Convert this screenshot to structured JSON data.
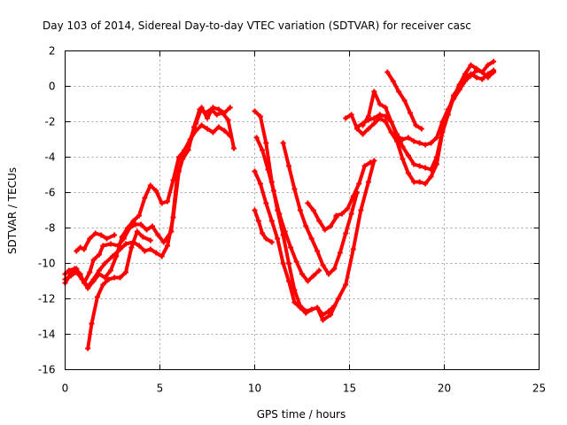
{
  "chart_data": {
    "type": "scatter",
    "title": "Day 103 of 2014, Sidereal Day-to-day VTEC variation (SDTVAR) for receiver casc",
    "xlabel": "GPS time / hours",
    "ylabel": "SDTVAR / TECUs",
    "xlim": [
      0,
      25
    ],
    "ylim": [
      -16,
      2
    ],
    "xticks": [
      "0",
      "5",
      "10",
      "15",
      "20",
      "25"
    ],
    "yticks": [
      "-16",
      "-14",
      "-12",
      "-10",
      "-8",
      "-6",
      "-4",
      "-2",
      "0",
      "2"
    ],
    "grid": true,
    "legend": "none",
    "marker": "+",
    "color": "#ff0000",
    "series": [
      {
        "x": [
          0.0,
          0.2,
          0.5,
          0.8,
          1.0,
          1.3,
          1.5,
          1.8,
          2.0,
          2.4,
          2.8,
          3.1,
          3.4,
          3.7,
          4.0,
          4.3,
          4.6,
          4.9,
          5.2,
          5.6,
          5.9,
          6.2,
          6.5,
          6.8,
          7.1,
          7.4,
          7.7,
          8.0,
          8.3,
          8.6,
          8.9
        ],
        "y": [
          -10.6,
          -10.4,
          -10.3,
          -10.6,
          -11.1,
          -10.5,
          -9.8,
          -9.5,
          -9.0,
          -8.9,
          -9.0,
          -8.6,
          -8.0,
          -7.8,
          -7.8,
          -8.1,
          -7.9,
          -8.4,
          -8.8,
          -8.2,
          -5.2,
          -4.1,
          -3.6,
          -2.3,
          -1.3,
          -1.5,
          -1.3,
          -1.6,
          -1.5,
          -1.9,
          -3.5
        ]
      },
      {
        "x": [
          0.0,
          0.3,
          0.6,
          0.9,
          1.2,
          1.5,
          1.8,
          2.1,
          2.5,
          2.9,
          3.2,
          3.6,
          3.9,
          4.2,
          4.5,
          4.8,
          5.1,
          5.4,
          5.7,
          6.0,
          6.3,
          6.6,
          6.9,
          7.2,
          7.5,
          7.8,
          8.1,
          8.4,
          8.7
        ],
        "y": [
          -10.9,
          -10.7,
          -10.5,
          -10.9,
          -11.3,
          -10.9,
          -10.4,
          -10.0,
          -9.6,
          -9.2,
          -8.9,
          -8.8,
          -9.0,
          -9.3,
          -9.2,
          -9.4,
          -9.6,
          -9.0,
          -7.4,
          -4.8,
          -3.6,
          -3.0,
          -2.5,
          -2.2,
          -2.4,
          -2.6,
          -2.3,
          -2.5,
          -2.8
        ]
      },
      {
        "x": [
          0.0,
          0.3,
          0.6,
          0.9,
          1.2,
          1.5,
          1.8,
          2.1,
          2.4,
          2.7,
          3.0,
          3.3,
          3.6,
          3.9,
          4.2,
          4.5,
          4.8,
          5.1,
          5.4,
          5.7,
          6.0,
          6.3,
          6.6,
          6.9,
          7.2,
          7.5,
          7.8,
          8.1,
          8.4,
          8.7
        ],
        "y": [
          -11.1,
          -10.6,
          -10.3,
          -10.9,
          -11.4,
          -11.0,
          -10.6,
          -10.8,
          -10.4,
          -9.6,
          -8.5,
          -8.0,
          -7.6,
          -7.3,
          -6.3,
          -5.6,
          -5.9,
          -6.6,
          -6.5,
          -5.3,
          -4.0,
          -3.6,
          -3.0,
          -2.1,
          -1.2,
          -1.8,
          -1.2,
          -1.3,
          -1.5,
          -1.2
        ]
      },
      {
        "x": [
          0.6,
          0.8,
          1.0,
          1.3,
          1.6,
          1.9,
          2.2,
          2.6
        ],
        "y": [
          -9.3,
          -9.1,
          -9.2,
          -8.6,
          -8.3,
          -8.4,
          -8.6,
          -8.4
        ]
      },
      {
        "x": [
          1.2,
          1.4,
          1.7,
          2.0,
          2.3,
          2.6,
          2.9,
          3.2,
          3.5,
          3.8,
          4.1,
          4.5
        ],
        "y": [
          -14.8,
          -13.4,
          -11.9,
          -11.2,
          -10.9,
          -10.8,
          -10.8,
          -10.5,
          -9.1,
          -8.2,
          -8.5,
          -8.7
        ]
      },
      {
        "x": [
          10.0,
          10.3,
          10.6,
          10.9,
          11.2,
          11.5,
          11.8,
          12.1,
          12.4,
          12.7,
          13.0,
          13.3,
          13.6,
          13.9,
          14.2
        ],
        "y": [
          -1.4,
          -1.7,
          -3.2,
          -5.4,
          -7.0,
          -8.4,
          -10.0,
          -11.5,
          -12.4,
          -12.7,
          -12.6,
          -12.5,
          -12.9,
          -12.7,
          -12.4
        ]
      },
      {
        "x": [
          10.0,
          10.3,
          10.6,
          10.9,
          11.2,
          11.5,
          11.8,
          12.1,
          12.4,
          12.7,
          13.0,
          13.3,
          13.6,
          14.0,
          14.4,
          14.8,
          15.2,
          15.6,
          16.0,
          16.3
        ],
        "y": [
          -4.8,
          -5.5,
          -6.6,
          -7.6,
          -8.6,
          -10.0,
          -11.0,
          -12.2,
          -12.5,
          -12.8,
          -12.6,
          -12.5,
          -13.2,
          -12.9,
          -12.0,
          -11.2,
          -9.2,
          -7.0,
          -5.4,
          -4.2
        ]
      },
      {
        "x": [
          10.1,
          10.4,
          10.7,
          11.0,
          11.3,
          11.6,
          11.9,
          12.2,
          12.5,
          12.8,
          13.1,
          13.4
        ],
        "y": [
          -2.9,
          -3.6,
          -4.7,
          -5.9,
          -7.2,
          -8.2,
          -9.1,
          -9.9,
          -10.6,
          -11.0,
          -10.7,
          -10.4
        ]
      },
      {
        "x": [
          10.0,
          10.2,
          10.4,
          10.6,
          10.9
        ],
        "y": [
          -7.0,
          -7.6,
          -8.3,
          -8.6,
          -8.8
        ]
      },
      {
        "x": [
          11.5,
          11.8,
          12.1,
          12.4,
          12.7,
          13.0,
          13.3,
          13.6,
          13.9,
          14.2,
          14.5,
          14.8,
          15.1,
          15.4
        ],
        "y": [
          -3.2,
          -4.5,
          -5.8,
          -7.0,
          -7.9,
          -8.6,
          -9.3,
          -10.1,
          -10.6,
          -10.3,
          -9.4,
          -8.3,
          -7.2,
          -6.0
        ]
      },
      {
        "x": [
          12.8,
          13.1,
          13.4,
          13.7,
          14.0,
          14.3
        ],
        "y": [
          -6.6,
          -7.0,
          -7.6,
          -8.1,
          -7.9,
          -7.4
        ]
      },
      {
        "x": [
          14.3,
          14.6,
          14.9,
          15.2,
          15.5,
          15.8,
          16.1
        ],
        "y": [
          -7.3,
          -7.2,
          -6.9,
          -6.2,
          -5.5,
          -4.5,
          -4.3
        ]
      },
      {
        "x": [
          14.8,
          15.1,
          15.4,
          15.7,
          16.0,
          16.3,
          16.6,
          16.9,
          17.2,
          17.5,
          17.8,
          18.1,
          18.4,
          18.7,
          19.0,
          19.3,
          19.6,
          19.9,
          20.2,
          20.5,
          20.8,
          21.1,
          21.4,
          21.7,
          22.0,
          22.3,
          22.6
        ],
        "y": [
          -1.8,
          -1.6,
          -2.4,
          -2.7,
          -2.4,
          -2.1,
          -1.8,
          -2.0,
          -2.6,
          -3.1,
          -4.1,
          -4.9,
          -5.4,
          -5.4,
          -5.5,
          -5.1,
          -4.4,
          -2.6,
          -1.6,
          -0.6,
          0.1,
          0.7,
          1.2,
          1.0,
          0.8,
          1.2,
          1.4
        ]
      },
      {
        "x": [
          15.4,
          15.7,
          16.0,
          16.3,
          16.6,
          16.9,
          17.2,
          17.5,
          17.8,
          18.1,
          18.4,
          18.7,
          19.0,
          19.3,
          19.6,
          19.9,
          20.2,
          20.5,
          20.8,
          21.1,
          21.4,
          21.7,
          22.0,
          22.3,
          22.6
        ],
        "y": [
          -2.3,
          -2.1,
          -1.9,
          -1.8,
          -1.6,
          -1.7,
          -2.0,
          -2.7,
          -3.4,
          -3.9,
          -4.4,
          -4.5,
          -4.6,
          -4.7,
          -4.0,
          -2.5,
          -1.4,
          -0.5,
          0.0,
          0.5,
          0.7,
          0.5,
          0.4,
          0.7,
          0.9
        ]
      },
      {
        "x": [
          15.7,
          16.0,
          16.3,
          16.6,
          16.9,
          17.2,
          17.5,
          17.8,
          18.1,
          18.4,
          18.7,
          19.0,
          19.3,
          19.6,
          19.9,
          20.2,
          20.5,
          20.8,
          21.1,
          21.4,
          21.7,
          22.0,
          22.3,
          22.6
        ],
        "y": [
          -2.2,
          -1.7,
          -0.3,
          -1.0,
          -1.2,
          -2.0,
          -2.8,
          -3.0,
          -2.9,
          -3.1,
          -3.2,
          -3.3,
          -3.2,
          -2.9,
          -2.0,
          -1.3,
          -0.7,
          -0.2,
          0.3,
          0.6,
          0.9,
          0.8,
          0.5,
          0.8
        ]
      },
      {
        "x": [
          17.0,
          17.3,
          17.6,
          17.9,
          18.2,
          18.5,
          18.8
        ],
        "y": [
          0.8,
          0.3,
          -0.3,
          -0.8,
          -1.5,
          -2.2,
          -2.4
        ]
      }
    ]
  }
}
